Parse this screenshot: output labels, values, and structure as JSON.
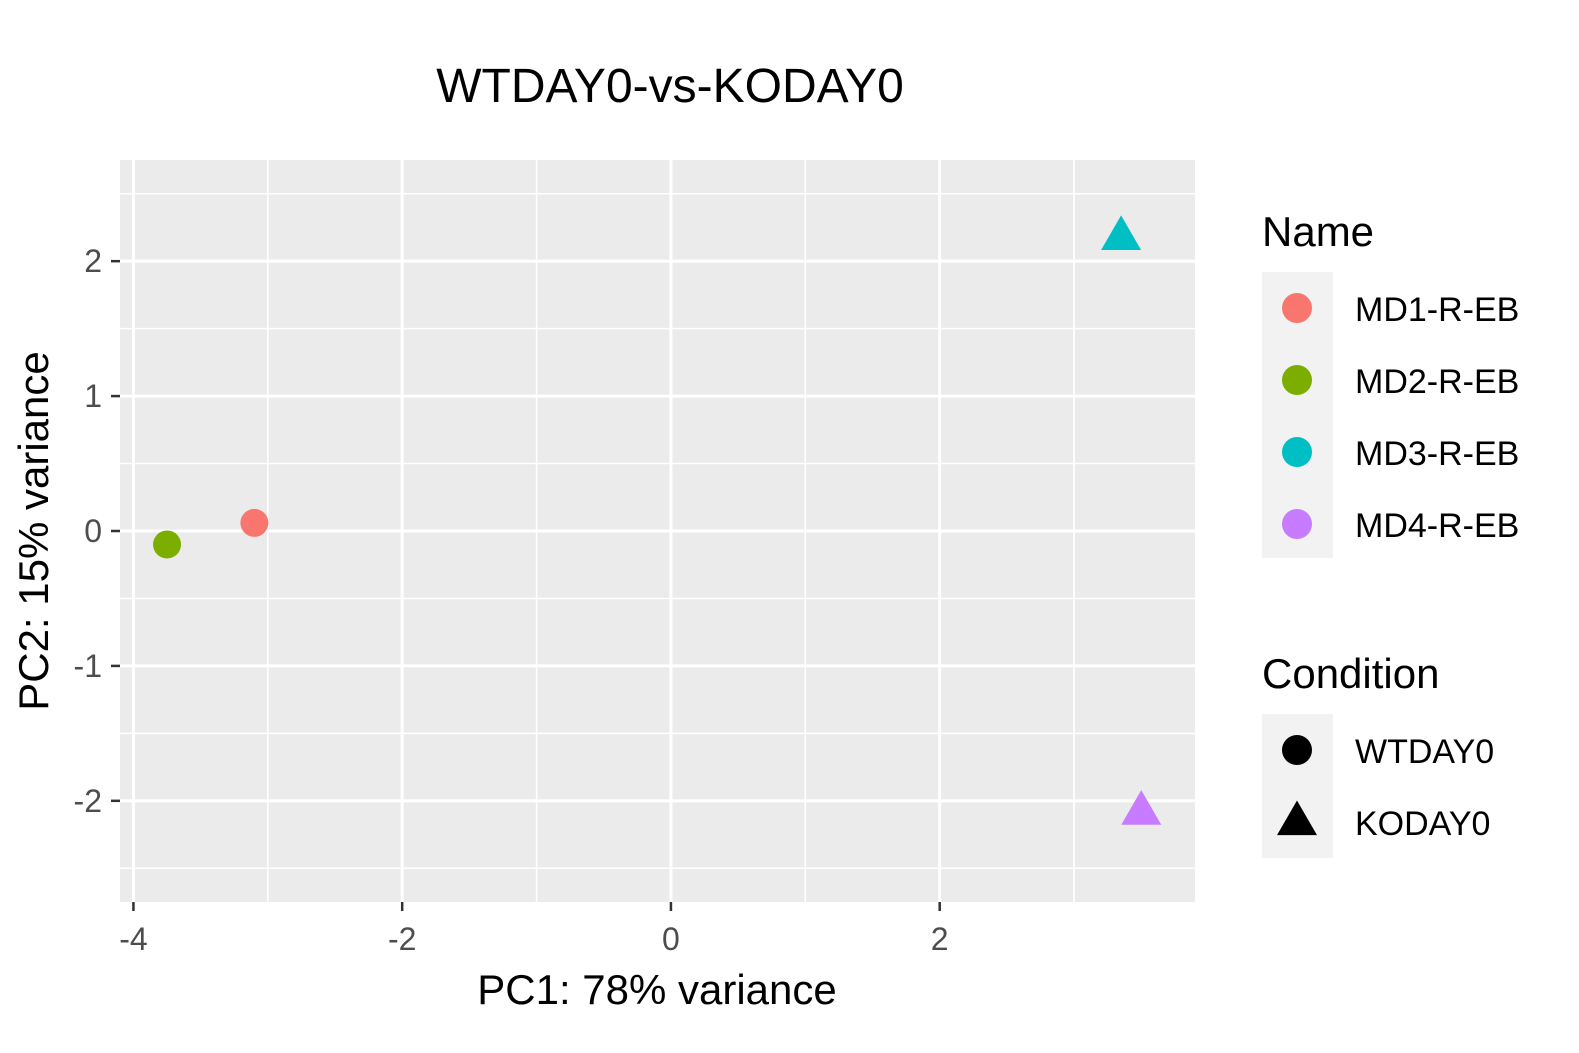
{
  "chart_data": {
    "type": "scatter",
    "title": "WTDAY0-vs-KODAY0",
    "xlabel": "PC1: 78% variance",
    "ylabel": "PC2: 15% variance",
    "xlim": [
      -4.1,
      3.9
    ],
    "ylim": [
      -2.75,
      2.75
    ],
    "x_ticks": [
      -4,
      -2,
      0,
      2
    ],
    "y_ticks": [
      2,
      1,
      0,
      -1,
      -2
    ],
    "x_tick_labels": [
      "-4",
      "-2",
      "0",
      "2"
    ],
    "y_tick_labels": [
      "2",
      "1",
      "0",
      "-1",
      "-2"
    ],
    "grid": true,
    "legend_placement": "right",
    "points": [
      {
        "name": "MD1-R-EB",
        "condition": "WTDAY0",
        "x": -3.1,
        "y": 0.06
      },
      {
        "name": "MD2-R-EB",
        "condition": "WTDAY0",
        "x": -3.75,
        "y": -0.1
      },
      {
        "name": "MD3-R-EB",
        "condition": "KODAY0",
        "x": 3.35,
        "y": 2.18
      },
      {
        "name": "MD4-R-EB",
        "condition": "KODAY0",
        "x": 3.5,
        "y": -2.08
      }
    ],
    "legend_name": {
      "title": "Name",
      "entries": [
        {
          "label": "MD1-R-EB",
          "color": "#F8766D"
        },
        {
          "label": "MD2-R-EB",
          "color": "#7CAE00"
        },
        {
          "label": "MD3-R-EB",
          "color": "#00BFC4"
        },
        {
          "label": "MD4-R-EB",
          "color": "#C77CFF"
        }
      ]
    },
    "legend_condition": {
      "title": "Condition",
      "entries": [
        {
          "label": "WTDAY0",
          "shape": "circle"
        },
        {
          "label": "KODAY0",
          "shape": "triangle"
        }
      ]
    },
    "colors": {
      "panel_background": "#EBEBEB",
      "grid": "#FFFFFF",
      "legend_key_background": "#F2F2F2"
    }
  }
}
